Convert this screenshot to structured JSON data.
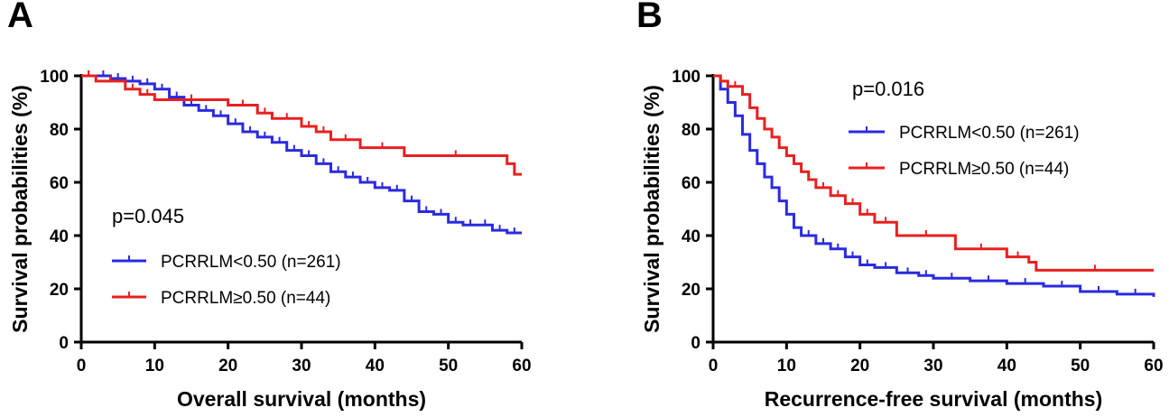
{
  "chart_data": [
    {
      "type": "line",
      "panel_label": "A",
      "xlabel": "Overall survival (months)",
      "ylabel": "Survival probabilities (%)",
      "xlim": [
        0,
        60
      ],
      "ylim": [
        0,
        100
      ],
      "xticks": [
        0,
        10,
        20,
        30,
        40,
        50,
        60
      ],
      "yticks": [
        0,
        20,
        40,
        60,
        80,
        100
      ],
      "annotation": "p=0.045",
      "legend_position": "bottom-left",
      "series": [
        {
          "name": "PCRRLM<0.50 (n=261)",
          "color": "#2a2ae0",
          "x": [
            0,
            2,
            4,
            6,
            8,
            10,
            12,
            14,
            16,
            18,
            20,
            22,
            24,
            26,
            28,
            30,
            32,
            34,
            36,
            38,
            40,
            42,
            44,
            46,
            48,
            50,
            52,
            54,
            56,
            58,
            60
          ],
          "y": [
            100,
            100,
            99,
            98,
            97,
            95,
            92,
            89,
            87,
            85,
            82,
            79,
            77,
            75,
            72,
            70,
            67,
            64,
            62,
            60,
            58,
            57,
            53,
            49,
            48,
            45,
            44,
            44,
            42,
            41,
            41
          ]
        },
        {
          "name": "PCRRLM≥0.50 (n=44)",
          "color": "#e82020",
          "x": [
            0,
            2,
            6,
            8,
            10,
            20,
            24,
            26,
            30,
            32,
            34,
            38,
            44,
            58,
            59,
            60
          ],
          "y": [
            100,
            98,
            95,
            93,
            91,
            89,
            86,
            84,
            81,
            79,
            76,
            73,
            70,
            67,
            63,
            63
          ]
        }
      ]
    },
    {
      "type": "line",
      "panel_label": "B",
      "xlabel": "Recurrence-free survival (months)",
      "ylabel": "Survival probabilities (%)",
      "xlim": [
        0,
        60
      ],
      "ylim": [
        0,
        100
      ],
      "xticks": [
        0,
        10,
        20,
        30,
        40,
        50,
        60
      ],
      "yticks": [
        0,
        20,
        40,
        60,
        80,
        100
      ],
      "annotation": "p=0.016",
      "legend_position": "top-right",
      "series": [
        {
          "name": "PCRRLM<0.50 (n=261)",
          "color": "#2a2ae0",
          "x": [
            0,
            1,
            2,
            3,
            4,
            5,
            6,
            7,
            8,
            9,
            10,
            11,
            12,
            14,
            16,
            18,
            20,
            22,
            25,
            28,
            30,
            35,
            40,
            45,
            50,
            55,
            60
          ],
          "y": [
            100,
            95,
            90,
            85,
            78,
            72,
            67,
            62,
            58,
            53,
            48,
            43,
            40,
            37,
            35,
            32,
            29,
            28,
            26,
            25,
            24,
            23,
            22,
            21,
            19,
            18,
            17
          ]
        },
        {
          "name": "PCRRLM≥0.50 (n=44)",
          "color": "#e82020",
          "x": [
            0,
            1,
            2,
            4,
            5,
            6,
            7,
            8,
            9,
            10,
            11,
            12,
            13,
            14,
            16,
            18,
            20,
            22,
            25,
            33,
            40,
            43,
            44,
            60
          ],
          "y": [
            100,
            98,
            96,
            93,
            88,
            84,
            80,
            77,
            73,
            70,
            67,
            64,
            61,
            58,
            55,
            52,
            48,
            45,
            40,
            35,
            32,
            30,
            27,
            27
          ]
        }
      ]
    }
  ]
}
